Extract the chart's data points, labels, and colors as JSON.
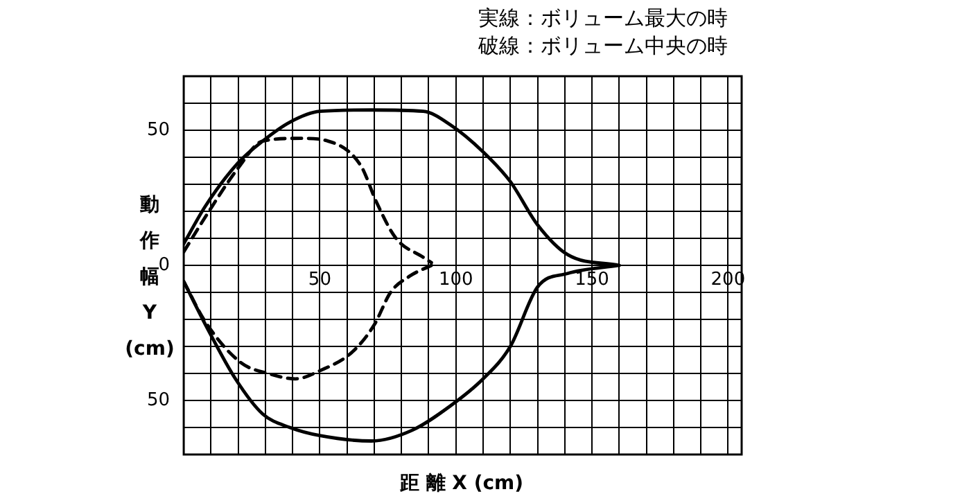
{
  "chart_data": {
    "type": "line",
    "xlabel": "距 離 X (cm)",
    "ylabel": "動作幅Y (cm)",
    "annotations": [
      "実線：ボリューム最大の時",
      "破線：ボリューム中央の時"
    ],
    "xlim": [
      0,
      205
    ],
    "ylim": [
      -70,
      70
    ],
    "xticks": [
      {
        "value": 0,
        "label": null
      },
      {
        "value": 10,
        "label": null
      },
      {
        "value": 20,
        "label": null
      },
      {
        "value": 30,
        "label": null
      },
      {
        "value": 40,
        "label": null
      },
      50,
      {
        "value": 60,
        "label": null
      },
      {
        "value": 70,
        "label": null
      },
      {
        "value": 80,
        "label": null
      },
      {
        "value": 90,
        "label": null
      },
      100,
      {
        "value": 110,
        "label": null
      },
      {
        "value": 120,
        "label": null
      },
      {
        "value": 130,
        "label": null
      },
      {
        "value": 140,
        "label": null
      },
      150,
      {
        "value": 160,
        "label": null
      },
      {
        "value": 170,
        "label": null
      },
      {
        "value": 180,
        "label": null
      },
      {
        "value": 190,
        "label": null
      },
      200
    ],
    "yticks": [
      {
        "value": -70,
        "label": null
      },
      {
        "value": -60,
        "label": null
      },
      {
        "value": -50,
        "label": "50"
      },
      {
        "value": -40,
        "label": null
      },
      {
        "value": -30,
        "label": null
      },
      {
        "value": -20,
        "label": null
      },
      {
        "value": -10,
        "label": null
      },
      0,
      {
        "value": 10,
        "label": null
      },
      {
        "value": 20,
        "label": null
      },
      {
        "value": 30,
        "label": null
      },
      {
        "value": 40,
        "label": null
      },
      50,
      {
        "value": 60,
        "label": null
      },
      {
        "value": 70,
        "label": null
      }
    ],
    "grid": true,
    "legend": false,
    "marker": "none",
    "series": [
      {
        "color": "#000000",
        "line_style": "solid",
        "x": [
          0,
          8,
          20,
          29,
          39,
          50,
          69,
          88,
          98,
          110,
          120,
          130,
          141,
          160
        ],
        "values": [
          8,
          22,
          38,
          46,
          53,
          57,
          57.5,
          57,
          52,
          42,
          31,
          15,
          4,
          0
        ]
      },
      {
        "color": "#000000",
        "line_style": "solid",
        "x": [
          0,
          8,
          19,
          29,
          39,
          50,
          69,
          84,
          98,
          110,
          120,
          130,
          141,
          160
        ],
        "values": [
          -6,
          -22,
          -42,
          -55,
          -60,
          -63,
          -65,
          -61,
          -52,
          -42,
          -30,
          -8,
          -3,
          0
        ]
      },
      {
        "color": "#000000",
        "line_style": "dashed",
        "x": [
          0,
          8,
          20,
          29,
          43,
          53,
          65,
          71,
          78,
          88,
          91
        ],
        "values": [
          5,
          18,
          36,
          46,
          47,
          46,
          37,
          23,
          10,
          3,
          1
        ]
      },
      {
        "color": "#000000",
        "line_style": "dashed",
        "x": [
          0,
          8,
          21,
          31,
          41,
          50,
          62,
          70,
          76,
          83,
          91
        ],
        "values": [
          -6,
          -21,
          -36,
          -40,
          -42,
          -39,
          -32,
          -22,
          -10,
          -4,
          0
        ]
      }
    ]
  }
}
